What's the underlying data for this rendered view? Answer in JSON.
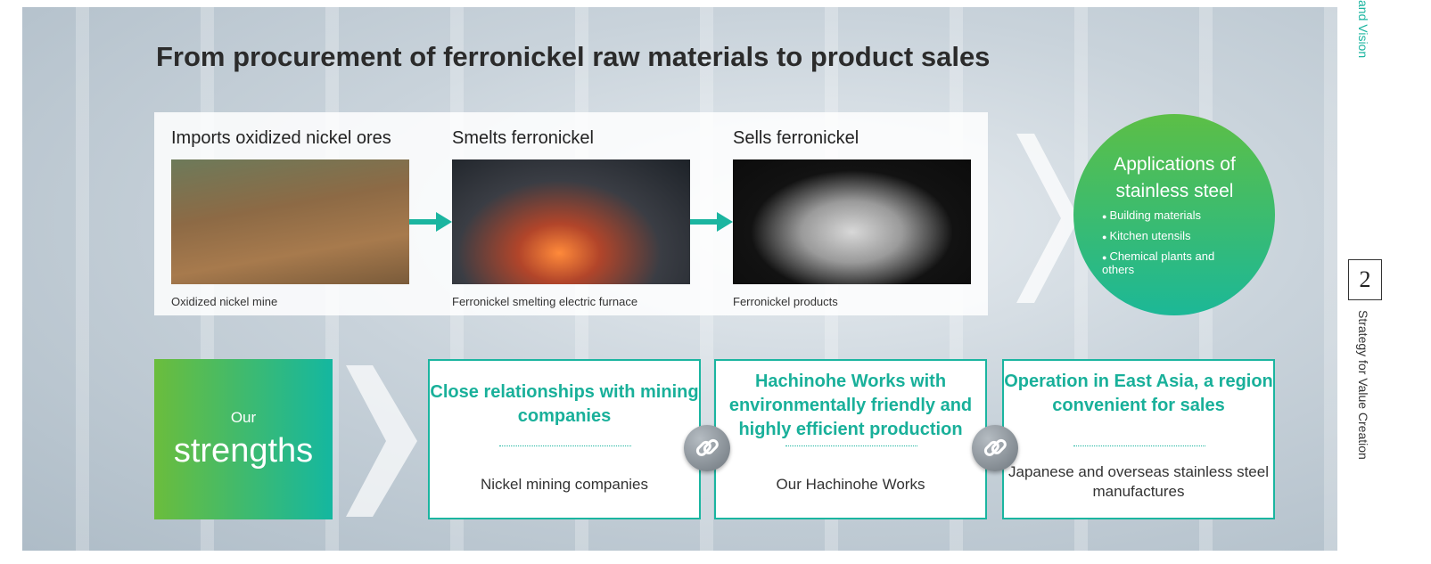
{
  "title": "From procurement of ferronickel raw materials to product sales",
  "process": {
    "steps": [
      {
        "title": "Imports oxidized nickel ores",
        "caption": "Oxidized nickel mine"
      },
      {
        "title": "Smelts ferronickel",
        "caption": "Ferronickel smelting electric furnace"
      },
      {
        "title": "Sells ferronickel",
        "caption": "Ferronickel products"
      }
    ]
  },
  "applications": {
    "title": "Applications of stainless steel",
    "items": [
      "Building materials",
      "Kitchen utensils",
      "Chemical plants and others"
    ]
  },
  "strengths": {
    "prefix": "Our",
    "label": "strengths"
  },
  "cards": [
    {
      "title": "Close relationships with mining companies",
      "description": "Nickel mining companies"
    },
    {
      "title": "Hachinohe Works with environmentally friendly and highly efficient production",
      "description": "Our Hachinohe Works"
    },
    {
      "title": "Operation in East Asia, a region convenient for sales",
      "description": "Japanese and overseas stainless steel manufactures"
    }
  ],
  "sidebar": {
    "top_label": "and Vision",
    "page_number": "2",
    "section": "Strategy for Value Creation"
  }
}
